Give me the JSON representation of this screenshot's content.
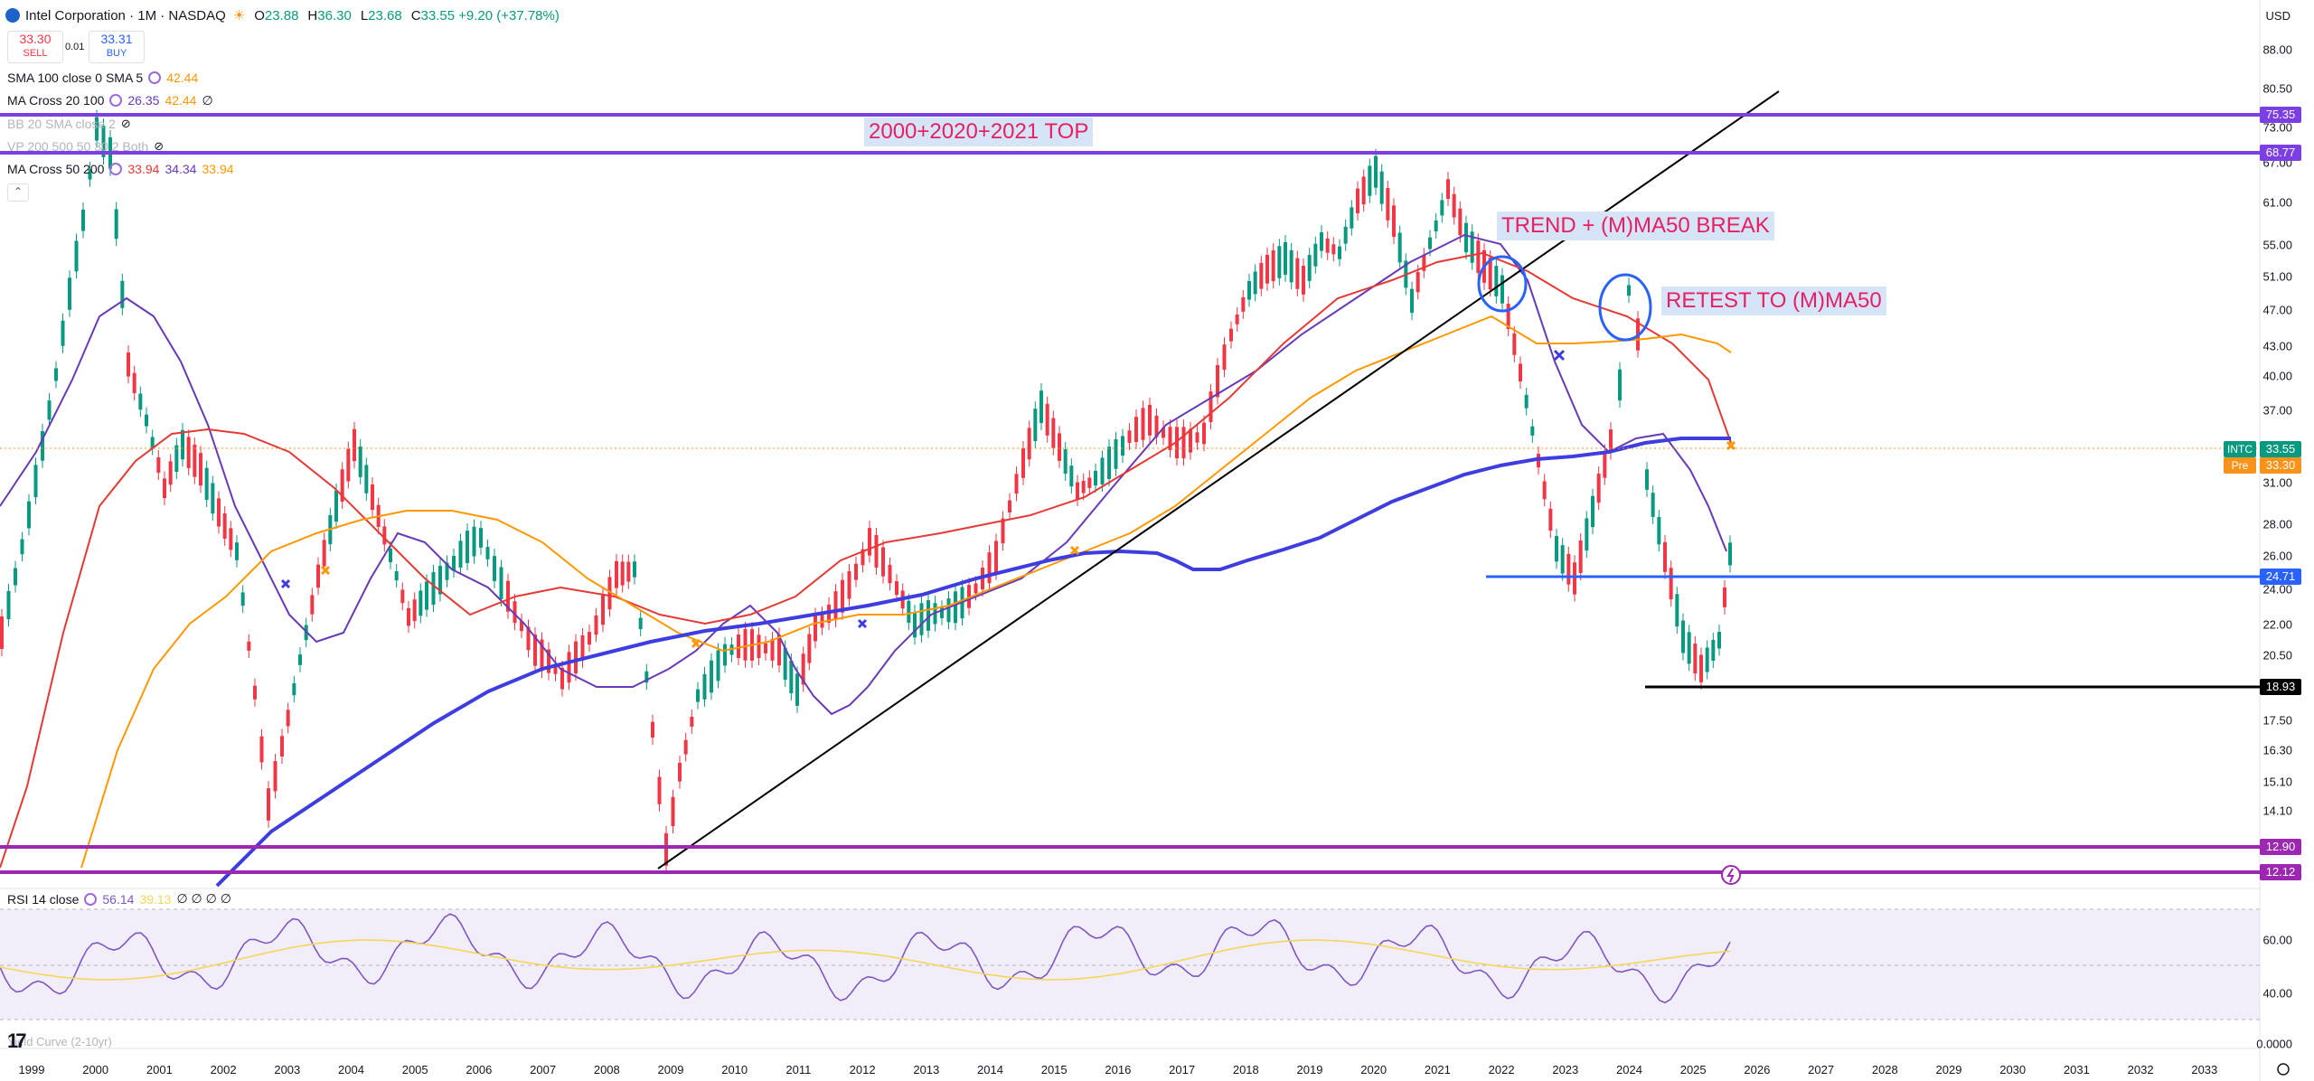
{
  "header": {
    "title": "Intel Corporation · 1M · NASDAQ",
    "open_label": "O",
    "open": "23.88",
    "high_label": "H",
    "high": "36.30",
    "low_label": "L",
    "low": "23.68",
    "close_label": "C",
    "close": "33.55",
    "change": "+9.20 (+37.78%)"
  },
  "trade": {
    "sell_price": "33.30",
    "sell_label": "SELL",
    "spread": "0.01",
    "buy_price": "33.31",
    "buy_label": "BUY"
  },
  "indicators": [
    {
      "name": "SMA 100 close 0 SMA 5",
      "v1": "42.44",
      "v2": "",
      "v3": ""
    },
    {
      "name": "MA Cross 20 100",
      "v1": "26.35",
      "v2": "42.44",
      "v3": "∅"
    },
    {
      "name": "BB 20 SMA close 2",
      "v1": "",
      "v2": "",
      "v3": ""
    },
    {
      "name": "VP 200 500 50 30 2 Both",
      "v1": "",
      "v2": "",
      "v3": ""
    },
    {
      "name": "MA Cross 50 200",
      "v1": "33.94",
      "v2": "34.34",
      "v3": "33.94"
    }
  ],
  "price_axis": {
    "currency": "USD",
    "ticks": [
      "88.00",
      "80.50",
      "73.00",
      "67.00",
      "61.00",
      "55.00",
      "51.00",
      "47.00",
      "43.00",
      "40.00",
      "37.00",
      "31.00",
      "28.00",
      "26.00",
      "24.00",
      "22.00",
      "20.50",
      "17.50",
      "16.30",
      "15.10",
      "14.10"
    ],
    "badges": [
      {
        "label": "75.35",
        "color": "#7b3fe4"
      },
      {
        "label": "68.77",
        "color": "#7b3fe4"
      },
      {
        "label": "33.55",
        "color": "#089981"
      },
      {
        "label": "33.30",
        "color": "#f7931a"
      },
      {
        "label": "24.71",
        "color": "#2962ff"
      },
      {
        "label": "18.93",
        "color": "#000000"
      },
      {
        "label": "12.90",
        "color": "#9c27b0"
      },
      {
        "label": "12.12",
        "color": "#9c27b0"
      }
    ],
    "symbol_badge": "INTC",
    "pre_badge": "Pre"
  },
  "time_axis": [
    "1999",
    "2000",
    "2001",
    "2002",
    "2003",
    "2004",
    "2005",
    "2006",
    "2007",
    "2008",
    "2009",
    "2010",
    "2011",
    "2012",
    "2013",
    "2014",
    "2015",
    "2016",
    "2017",
    "2018",
    "2019",
    "2020",
    "2021",
    "2022",
    "2023",
    "2024",
    "2025",
    "2026",
    "2027",
    "2028",
    "2029",
    "2030",
    "2031",
    "2032",
    "2033"
  ],
  "annotations": {
    "top": "2000+2020+2021 TOP",
    "trend": "TREND + (M)MA50 BREAK",
    "retest": "RETEST TO (M)MA50"
  },
  "rsi": {
    "name": "RSI 14 close",
    "v1": "56.14",
    "v2": "39.13",
    "rest": "∅ ∅ ∅ ∅",
    "ticks": [
      "60.00",
      "40.00",
      "0.0000"
    ]
  },
  "yield_label": "Yield Curve (2-10yr)",
  "logo": "17",
  "colors": {
    "up": "#089981",
    "down": "#f23645",
    "ma_fast": "#673ab7",
    "ma_red": "#e53935",
    "ma_orange": "#ff9800",
    "ma_blue": "#3d3de0",
    "resistance": "#7b3fe4",
    "support": "#9c27b0",
    "level_blue": "#2962ff",
    "level_black": "#000000",
    "annotation_text": "#e91e63"
  }
}
